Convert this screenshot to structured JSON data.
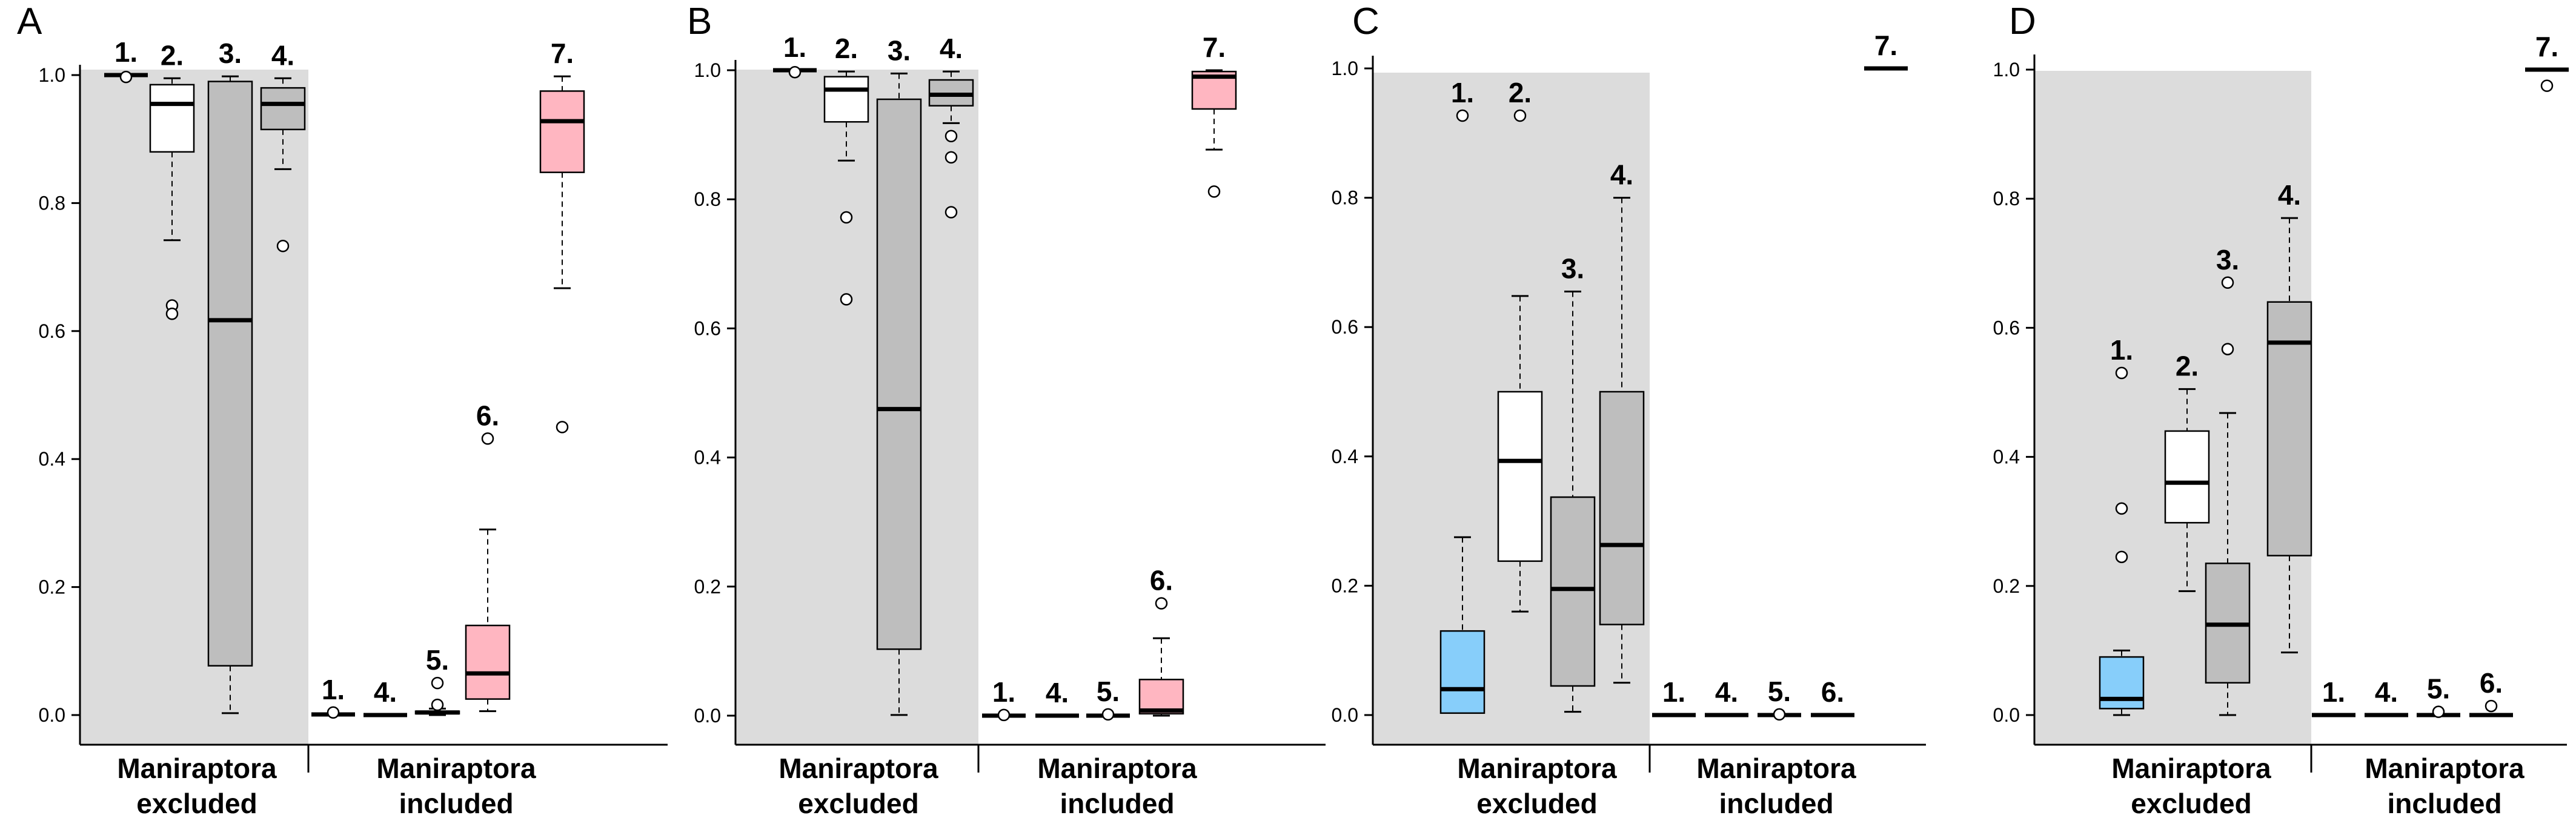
{
  "chart_data": [
    {
      "panel": "A",
      "type": "box",
      "ylim": [
        0,
        1
      ],
      "yticks": [
        "0.0",
        "0.2",
        "0.4",
        "0.6",
        "0.8",
        "1.0"
      ],
      "groups": [
        {
          "line1": "Maniraptora",
          "line2": "excluded",
          "shaded": true
        },
        {
          "line1": "Maniraptora",
          "line2": "included",
          "shaded": false
        }
      ],
      "boxes": [
        {
          "label": "1.",
          "group": 0,
          "color": "#ffffff",
          "min": 1.0,
          "q1": 1.0,
          "median": 1.0,
          "q3": 1.0,
          "max": 1.0,
          "outliers": [
            0.997
          ]
        },
        {
          "label": "2.",
          "group": 0,
          "color": "#ffffff",
          "min": 0.742,
          "q1": 0.88,
          "median": 0.955,
          "q3": 0.985,
          "max": 0.995,
          "outliers": [
            0.64,
            0.627
          ]
        },
        {
          "label": "3.",
          "group": 0,
          "color": "#bebebe",
          "min": 0.003,
          "q1": 0.077,
          "median": 0.617,
          "q3": 0.99,
          "max": 0.998,
          "outliers": []
        },
        {
          "label": "4.",
          "group": 0,
          "color": "#bebebe",
          "min": 0.853,
          "q1": 0.915,
          "median": 0.955,
          "q3": 0.98,
          "max": 0.995,
          "outliers": [
            0.733
          ]
        },
        {
          "label": "1.",
          "group": 1,
          "color": "#ffffff",
          "min": 0.001,
          "q1": 0.001,
          "median": 0.001,
          "q3": 0.001,
          "max": 0.001,
          "outliers": [
            0.004
          ]
        },
        {
          "label": "4.",
          "group": 1,
          "color": "#ffffff",
          "min": 0.0,
          "q1": 0.0,
          "median": 0.0,
          "q3": 0.0,
          "max": 0.0,
          "outliers": []
        },
        {
          "label": "5.",
          "group": 1,
          "color": "#ffffff",
          "min": 0.0,
          "q1": 0.002,
          "median": 0.004,
          "q3": 0.006,
          "max": 0.01,
          "outliers": [
            0.016,
            0.05
          ]
        },
        {
          "label": "6.",
          "group": 1,
          "color": "#ffb6c1",
          "min": 0.006,
          "q1": 0.025,
          "median": 0.065,
          "q3": 0.14,
          "max": 0.29,
          "outliers": [
            0.432
          ]
        },
        {
          "label": "7.",
          "group": 1,
          "color": "#ffb6c1",
          "min": 0.667,
          "q1": 0.848,
          "median": 0.928,
          "q3": 0.975,
          "max": 0.998,
          "outliers": [
            0.45
          ]
        }
      ]
    },
    {
      "panel": "B",
      "type": "box",
      "ylim": [
        0,
        1
      ],
      "yticks": [
        "0.0",
        "0.2",
        "0.4",
        "0.6",
        "0.8",
        "1.0"
      ],
      "groups": [
        {
          "line1": "Maniraptora",
          "line2": "excluded",
          "shaded": true
        },
        {
          "line1": "Maniraptora",
          "line2": "included",
          "shaded": false
        }
      ],
      "boxes": [
        {
          "label": "1.",
          "group": 0,
          "color": "#ffffff",
          "min": 1.0,
          "q1": 1.0,
          "median": 1.0,
          "q3": 1.0,
          "max": 1.0,
          "outliers": [
            0.997
          ]
        },
        {
          "label": "2.",
          "group": 0,
          "color": "#ffffff",
          "min": 0.86,
          "q1": 0.92,
          "median": 0.97,
          "q3": 0.99,
          "max": 0.998,
          "outliers": [
            0.772,
            0.645
          ]
        },
        {
          "label": "3.",
          "group": 0,
          "color": "#bebebe",
          "min": 0.001,
          "q1": 0.103,
          "median": 0.475,
          "q3": 0.955,
          "max": 0.995,
          "outliers": []
        },
        {
          "label": "4.",
          "group": 0,
          "color": "#bebebe",
          "min": 0.918,
          "q1": 0.945,
          "median": 0.962,
          "q3": 0.985,
          "max": 0.998,
          "outliers": [
            0.898,
            0.865,
            0.78
          ]
        },
        {
          "label": "1.",
          "group": 1,
          "color": "#ffffff",
          "min": 0.0,
          "q1": 0.0,
          "median": 0.0,
          "q3": 0.0,
          "max": 0.0,
          "outliers": [
            0.001
          ]
        },
        {
          "label": "4.",
          "group": 1,
          "color": "#ffffff",
          "min": 0.0,
          "q1": 0.0,
          "median": 0.0,
          "q3": 0.0,
          "max": 0.0,
          "outliers": []
        },
        {
          "label": "5.",
          "group": 1,
          "color": "#ffffff",
          "min": 0.0,
          "q1": 0.0,
          "median": 0.0,
          "q3": 0.0,
          "max": 0.0,
          "outliers": [
            0.002
          ]
        },
        {
          "label": "6.",
          "group": 1,
          "color": "#ffb6c1",
          "min": 0.0,
          "q1": 0.003,
          "median": 0.008,
          "q3": 0.056,
          "max": 0.12,
          "outliers": [
            0.174
          ]
        },
        {
          "label": "7.",
          "group": 1,
          "color": "#ffb6c1",
          "min": 0.877,
          "q1": 0.94,
          "median": 0.99,
          "q3": 0.998,
          "max": 1.0,
          "outliers": [
            0.812
          ]
        }
      ]
    },
    {
      "panel": "C",
      "type": "box",
      "ylim": [
        0,
        1
      ],
      "yticks": [
        "0.0",
        "0.2",
        "0.4",
        "0.6",
        "0.8",
        "1.0"
      ],
      "groups": [
        {
          "line1": "Maniraptora",
          "line2": "excluded",
          "shaded": true
        },
        {
          "line1": "Maniraptora",
          "line2": "included",
          "shaded": false
        }
      ],
      "boxes": [
        {
          "label": "1.",
          "group": 0,
          "color": "#87cefa",
          "min": 0.002,
          "q1": 0.003,
          "median": 0.04,
          "q3": 0.13,
          "max": 0.275,
          "outliers": [
            0.927
          ]
        },
        {
          "label": "2.",
          "group": 0,
          "color": "#ffffff",
          "min": 0.16,
          "q1": 0.238,
          "median": 0.393,
          "q3": 0.5,
          "max": 0.648,
          "outliers": [
            0.927
          ]
        },
        {
          "label": "3.",
          "group": 0,
          "color": "#bebebe",
          "min": 0.005,
          "q1": 0.045,
          "median": 0.195,
          "q3": 0.337,
          "max": 0.655,
          "outliers": []
        },
        {
          "label": "4.",
          "group": 0,
          "color": "#bebebe",
          "min": 0.05,
          "q1": 0.14,
          "median": 0.263,
          "q3": 0.5,
          "max": 0.8,
          "outliers": []
        },
        {
          "label": "1.",
          "group": 1,
          "color": "#ffffff",
          "min": 0.0,
          "q1": 0.0,
          "median": 0.0,
          "q3": 0.0,
          "max": 0.0,
          "outliers": []
        },
        {
          "label": "4.",
          "group": 1,
          "color": "#ffffff",
          "min": 0.0,
          "q1": 0.0,
          "median": 0.0,
          "q3": 0.0,
          "max": 0.0,
          "outliers": []
        },
        {
          "label": "5.",
          "group": 1,
          "color": "#ffffff",
          "min": 0.0,
          "q1": 0.0,
          "median": 0.0,
          "q3": 0.0,
          "max": 0.0,
          "outliers": [
            0.001
          ]
        },
        {
          "label": "6.",
          "group": 1,
          "color": "#ffffff",
          "min": 0.0,
          "q1": 0.0,
          "median": 0.0,
          "q3": 0.0,
          "max": 0.0,
          "outliers": []
        },
        {
          "label": "7.",
          "group": 1,
          "color": "#ffffff",
          "min": 1.0,
          "q1": 1.0,
          "median": 1.0,
          "q3": 1.0,
          "max": 1.0,
          "outliers": []
        }
      ]
    },
    {
      "panel": "D",
      "type": "box",
      "ylim": [
        0,
        1
      ],
      "yticks": [
        "0.0",
        "0.2",
        "0.4",
        "0.6",
        "0.8",
        "1.0"
      ],
      "groups": [
        {
          "line1": "Maniraptora",
          "line2": "excluded",
          "shaded": true
        },
        {
          "line1": "Maniraptora",
          "line2": "included",
          "shaded": false
        }
      ],
      "boxes": [
        {
          "label": "1.",
          "group": 0,
          "color": "#87cefa",
          "min": 0.0,
          "q1": 0.01,
          "median": 0.025,
          "q3": 0.09,
          "max": 0.1,
          "outliers": [
            0.53,
            0.32,
            0.245
          ]
        },
        {
          "label": "2.",
          "group": 0,
          "color": "#ffffff",
          "min": 0.192,
          "q1": 0.298,
          "median": 0.36,
          "q3": 0.44,
          "max": 0.505,
          "outliers": []
        },
        {
          "label": "3.",
          "group": 0,
          "color": "#bebebe",
          "min": 0.0,
          "q1": 0.05,
          "median": 0.14,
          "q3": 0.235,
          "max": 0.468,
          "outliers": [
            0.67,
            0.567
          ]
        },
        {
          "label": "4.",
          "group": 0,
          "color": "#bebebe",
          "min": 0.097,
          "q1": 0.247,
          "median": 0.577,
          "q3": 0.64,
          "max": 0.77,
          "outliers": []
        },
        {
          "label": "1.",
          "group": 1,
          "color": "#ffffff",
          "min": 0.0,
          "q1": 0.0,
          "median": 0.0,
          "q3": 0.0,
          "max": 0.0,
          "outliers": []
        },
        {
          "label": "4.",
          "group": 1,
          "color": "#ffffff",
          "min": 0.0,
          "q1": 0.0,
          "median": 0.0,
          "q3": 0.0,
          "max": 0.0,
          "outliers": []
        },
        {
          "label": "5.",
          "group": 1,
          "color": "#ffffff",
          "min": 0.0,
          "q1": 0.0,
          "median": 0.0,
          "q3": 0.0,
          "max": 0.0,
          "outliers": [
            0.005
          ]
        },
        {
          "label": "6.",
          "group": 1,
          "color": "#ffffff",
          "min": 0.0,
          "q1": 0.0,
          "median": 0.0,
          "q3": 0.0,
          "max": 0.0,
          "outliers": [
            0.014
          ]
        },
        {
          "label": "7.",
          "group": 1,
          "color": "#ffffff",
          "min": 1.0,
          "q1": 1.0,
          "median": 1.0,
          "q3": 1.0,
          "max": 1.0,
          "outliers": [
            0.975
          ]
        }
      ]
    }
  ]
}
